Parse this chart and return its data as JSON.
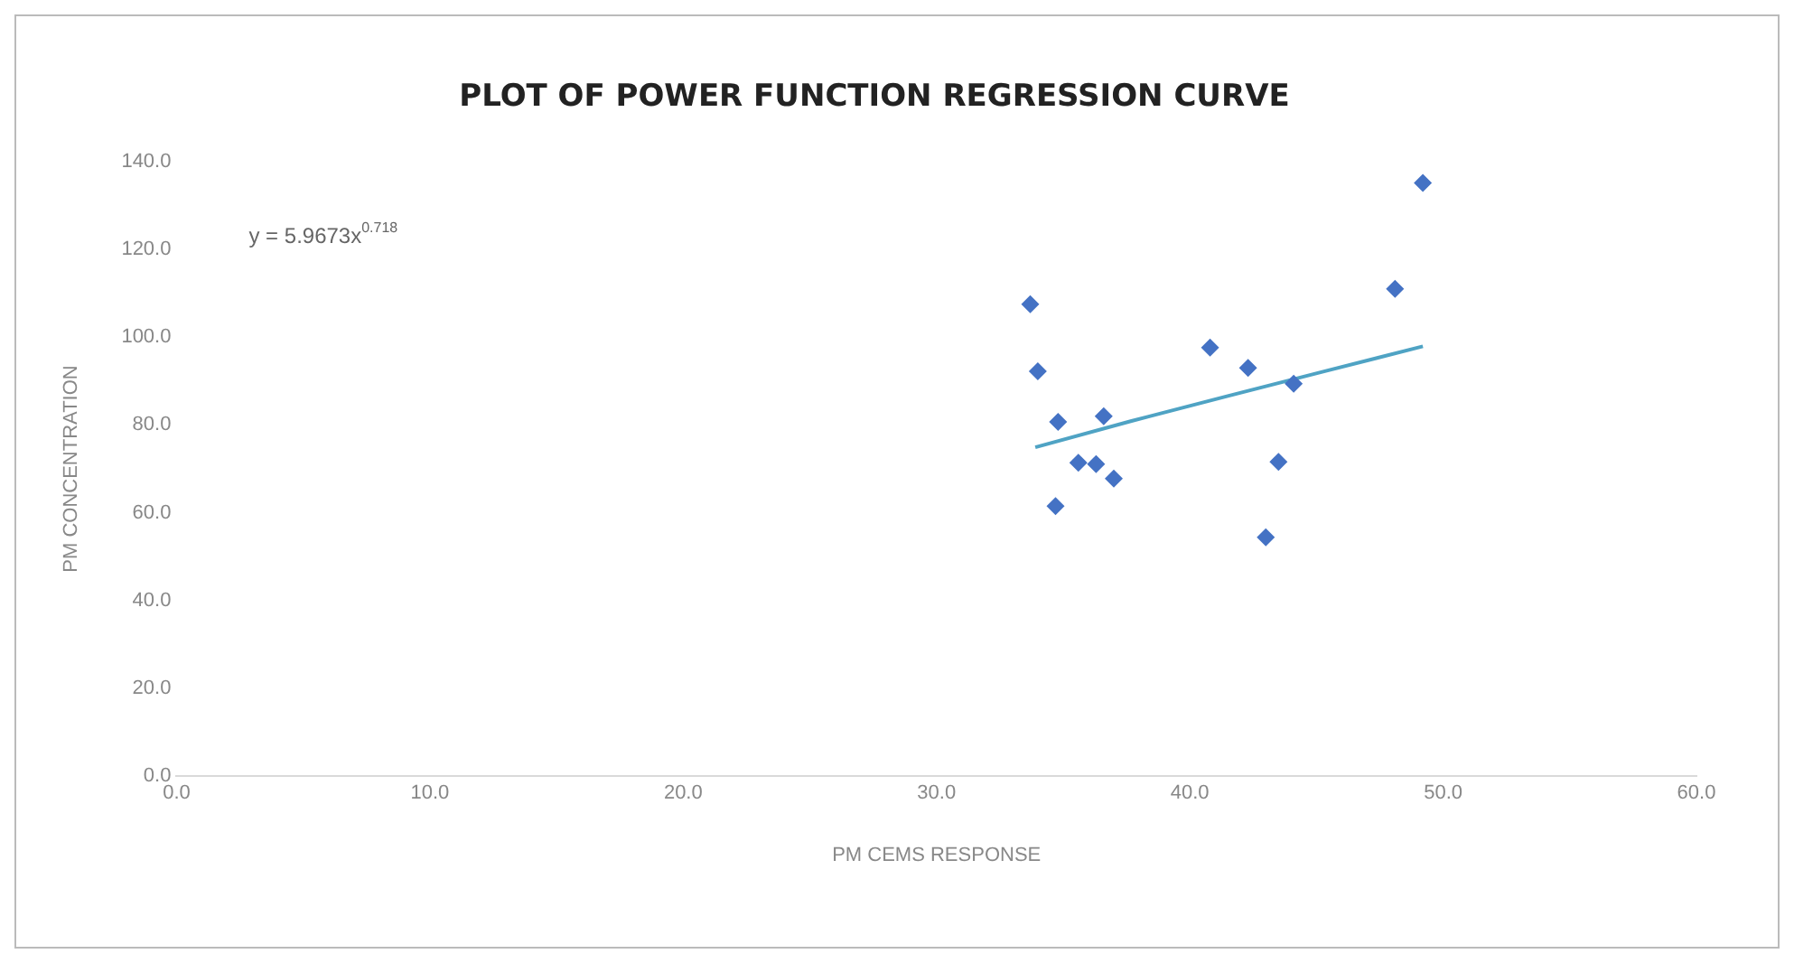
{
  "chart_data": {
    "type": "scatter",
    "title": "PLOT OF POWER FUNCTION REGRESSION CURVE",
    "xlabel": "PM CEMS RESPONSE",
    "ylabel": "PM CONCENTRATION",
    "xlim": [
      0,
      60
    ],
    "xticks": [
      {
        "value": 0,
        "label": "0.0"
      },
      {
        "value": 10,
        "label": "10.0"
      },
      {
        "value": 20,
        "label": "20.0"
      },
      {
        "value": 30,
        "label": "30.0"
      },
      {
        "value": 40,
        "label": "40.0"
      },
      {
        "value": 50,
        "label": "50.0"
      },
      {
        "value": 60,
        "label": "60.0"
      }
    ],
    "ylim": [
      0,
      140
    ],
    "yticks": [
      {
        "value": 0,
        "label": "0.0"
      },
      {
        "value": 20,
        "label": "20.0"
      },
      {
        "value": 40,
        "label": "40.0"
      },
      {
        "value": 60,
        "label": "60.0"
      },
      {
        "value": 80,
        "label": "80.0"
      },
      {
        "value": 100,
        "label": "100.0"
      },
      {
        "value": 120,
        "label": "120.0"
      },
      {
        "value": 140,
        "label": "140.0"
      }
    ],
    "grid": false,
    "legend": false,
    "marker": "diamond",
    "series": [
      {
        "color": "#4472c4",
        "x": [
          33.7,
          34.0,
          34.8,
          34.7,
          35.6,
          36.3,
          36.6,
          37.0,
          40.8,
          42.3,
          43.0,
          43.5,
          44.1,
          48.1,
          49.2
        ],
        "values": [
          107.5,
          92.2,
          80.7,
          61.5,
          71.4,
          71.1,
          82.0,
          67.8,
          97.6,
          93.0,
          54.4,
          71.6,
          89.4,
          111.0,
          135.1
        ]
      },
      {
        "type": "line",
        "color": "#4fa3c4",
        "marker": "none",
        "x": [
          33.9,
          37.7,
          41.5,
          45.3,
          49.2
        ],
        "values": [
          74.9,
          80.9,
          86.6,
          92.2,
          97.9
        ]
      }
    ],
    "annotations": [
      "y = 5.9673x$^{0.718}$"
    ]
  }
}
